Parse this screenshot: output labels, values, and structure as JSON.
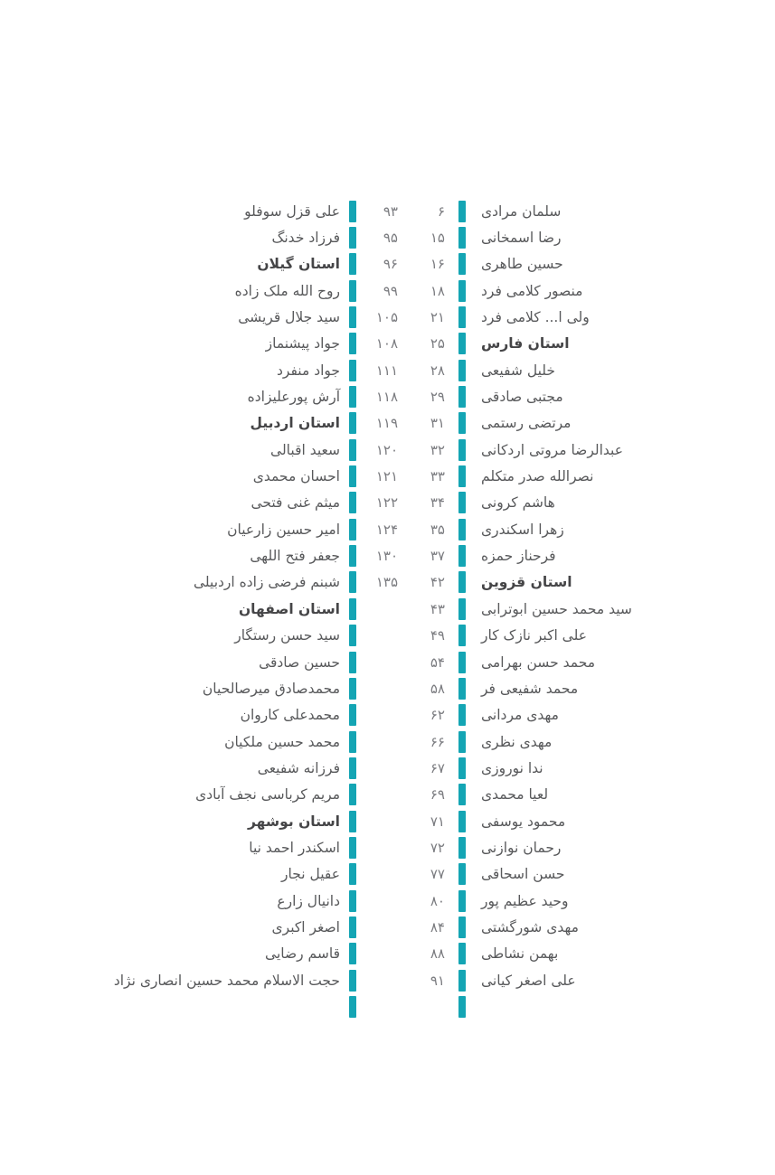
{
  "page": {
    "language": "fa",
    "direction": "rtl",
    "background": "#ffffff",
    "accent_color": "#14a5b4",
    "text_color": "#58595b",
    "bold_text_color": "#454547",
    "number_color": "#7b7c80"
  },
  "toc": {
    "right_column": {
      "entries": [
        {
          "name": "سلمان مرادی",
          "page": "۶",
          "bold": false
        },
        {
          "name": "رضا اسمخانی",
          "page": "۱۵",
          "bold": false
        },
        {
          "name": "حسین طاهری",
          "page": "۱۶",
          "bold": false
        },
        {
          "name": "منصور کلامی فرد",
          "page": "۱۸",
          "bold": false
        },
        {
          "name": "ولی ا... کلامی فرد",
          "page": "۲۱",
          "bold": false
        },
        {
          "name": "استان فارس",
          "page": "۲۵",
          "bold": true
        },
        {
          "name": "خلیل شفیعی",
          "page": "۲۸",
          "bold": false
        },
        {
          "name": "مجتبی صادقی",
          "page": "۲۹",
          "bold": false
        },
        {
          "name": "مرتضی رستمی",
          "page": "۳۱",
          "bold": false
        },
        {
          "name": "عبدالرضا مروتی اردکانی",
          "page": "۳۲",
          "bold": false
        },
        {
          "name": "نصرالله صدر متکلم",
          "page": "۳۳",
          "bold": false
        },
        {
          "name": "هاشم کرونی",
          "page": "۳۴",
          "bold": false
        },
        {
          "name": "زهرا اسکندری",
          "page": "۳۵",
          "bold": false
        },
        {
          "name": "فرحناز حمزه",
          "page": "۳۷",
          "bold": false
        },
        {
          "name": "استان قزوین",
          "page": "۴۲",
          "bold": true
        },
        {
          "name": "سید محمد حسین ابوترابی",
          "page": "۴۳",
          "bold": false
        },
        {
          "name": "علی اکبر نازک کار",
          "page": "۴۹",
          "bold": false
        },
        {
          "name": "محمد حسن بهرامی",
          "page": "۵۴",
          "bold": false
        },
        {
          "name": "محمد شفیعی فر",
          "page": "۵۸",
          "bold": false
        },
        {
          "name": "مهدی مردانی",
          "page": "۶۲",
          "bold": false
        },
        {
          "name": "مهدی نظری",
          "page": "۶۶",
          "bold": false
        },
        {
          "name": "ندا نوروزی",
          "page": "۶۷",
          "bold": false
        },
        {
          "name": "لعیا محمدی",
          "page": "۶۹",
          "bold": false
        },
        {
          "name": "محمود یوسفی",
          "page": "۷۱",
          "bold": false
        },
        {
          "name": "رحمان نوازنی",
          "page": "۷۲",
          "bold": false
        },
        {
          "name": "حسن اسحاقی",
          "page": "۷۷",
          "bold": false
        },
        {
          "name": "وحید عظیم پور",
          "page": "۸۰",
          "bold": false
        },
        {
          "name": "مهدی شورگشتی",
          "page": "۸۴",
          "bold": false
        },
        {
          "name": "بهمن نشاطی",
          "page": "۸۸",
          "bold": false
        },
        {
          "name": "علی اصغر کیانی",
          "page": "۹۱",
          "bold": false
        }
      ]
    },
    "left_column": {
      "entries": [
        {
          "name": "علی قزل سوفلو",
          "page": "۹۳",
          "bold": false
        },
        {
          "name": "فرزاد خدنگ",
          "page": "۹۵",
          "bold": false
        },
        {
          "name": "استان گیلان",
          "page": "۹۶",
          "bold": true
        },
        {
          "name": "روح الله ملک زاده",
          "page": "۹۹",
          "bold": false
        },
        {
          "name": "سید جلال قریشی",
          "page": "۱۰۵",
          "bold": false
        },
        {
          "name": "جواد پیشنماز",
          "page": "۱۰۸",
          "bold": false
        },
        {
          "name": "جواد منفرد",
          "page": "۱۱۱",
          "bold": false
        },
        {
          "name": "آرش پورعلیزاده",
          "page": "۱۱۸",
          "bold": false
        },
        {
          "name": "استان اردبیل",
          "page": "۱۱۹",
          "bold": true
        },
        {
          "name": "سعید اقبالی",
          "page": "۱۲۰",
          "bold": false
        },
        {
          "name": "احسان محمدی",
          "page": "۱۲۱",
          "bold": false
        },
        {
          "name": "میثم غنی فتحی",
          "page": "۱۲۲",
          "bold": false
        },
        {
          "name": "امیر حسین زارعیان",
          "page": "۱۲۴",
          "bold": false
        },
        {
          "name": "جعفر فتح اللهی",
          "page": "۱۳۰",
          "bold": false
        },
        {
          "name": "شبنم فرضی زاده اردبیلی",
          "page": "۱۳۵",
          "bold": false
        },
        {
          "name": "استان اصفهان",
          "page": "",
          "bold": true
        },
        {
          "name": "سید حسن رستگار",
          "page": "",
          "bold": false
        },
        {
          "name": "حسین صادقی",
          "page": "",
          "bold": false
        },
        {
          "name": "محمدصادق میرصالحیان",
          "page": "",
          "bold": false
        },
        {
          "name": "محمدعلی کاروان",
          "page": "",
          "bold": false
        },
        {
          "name": "محمد حسین ملکیان",
          "page": "",
          "bold": false
        },
        {
          "name": "فرزانه شفیعی",
          "page": "",
          "bold": false
        },
        {
          "name": "مریم کرباسی نجف آبادی",
          "page": "",
          "bold": false
        },
        {
          "name": "استان بوشهر",
          "page": "",
          "bold": true
        },
        {
          "name": "اسکندر احمد نیا",
          "page": "",
          "bold": false
        },
        {
          "name": "عقیل نجار",
          "page": "",
          "bold": false
        },
        {
          "name": "دانیال زارع",
          "page": "",
          "bold": false
        },
        {
          "name": "اصغر اکبری",
          "page": "",
          "bold": false
        },
        {
          "name": "قاسم رضایی",
          "page": "",
          "bold": false
        },
        {
          "name": "حجت الاسلام محمد حسین انصاری نژاد",
          "page": "",
          "bold": false
        }
      ]
    }
  }
}
